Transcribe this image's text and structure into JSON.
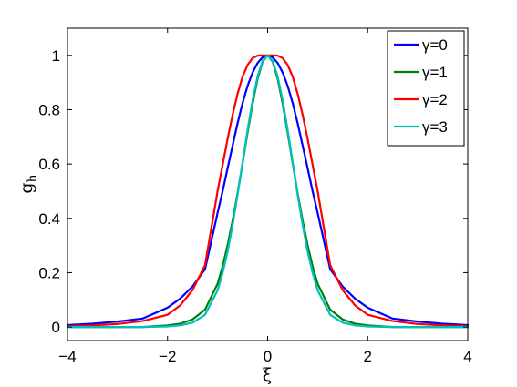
{
  "chart_data": {
    "type": "line",
    "xlabel": "ξ",
    "ylabel_main": "g",
    "ylabel_sub": "h",
    "xlim": [
      -4,
      4
    ],
    "ylim": [
      -0.05,
      1.1
    ],
    "x_ticks": [
      -4,
      -2,
      0,
      2,
      4
    ],
    "x_tick_labels": [
      "−4",
      "−2",
      "0",
      "2",
      "4"
    ],
    "y_ticks": [
      0,
      0.2,
      0.4,
      0.6,
      0.8,
      1
    ],
    "y_tick_labels": [
      "0",
      "0.2",
      "0.4",
      "0.6",
      "0.8",
      "1"
    ],
    "grid": false,
    "legend_position": "top-right",
    "x": [
      -4,
      -3.5,
      -3,
      -2.5,
      -2,
      -1.75,
      -1.5,
      -1.25,
      -1,
      -0.9,
      -0.8,
      -0.7,
      -0.6,
      -0.5,
      -0.4,
      -0.3,
      -0.2,
      -0.1,
      0,
      0.1,
      0.2,
      0.3,
      0.4,
      0.5,
      0.6,
      0.7,
      0.8,
      0.9,
      1,
      1.25,
      1.5,
      1.75,
      2,
      2.5,
      3,
      3.5,
      4
    ],
    "series": [
      {
        "name": "γ=0",
        "color": "#0000ff",
        "values": [
          0.007,
          0.012,
          0.02,
          0.031,
          0.071,
          0.104,
          0.149,
          0.213,
          0.42,
          0.499,
          0.584,
          0.668,
          0.75,
          0.825,
          0.888,
          0.937,
          0.972,
          0.993,
          1,
          0.993,
          0.972,
          0.937,
          0.888,
          0.825,
          0.75,
          0.668,
          0.584,
          0.499,
          0.42,
          0.213,
          0.149,
          0.104,
          0.071,
          0.031,
          0.02,
          0.012,
          0.007
        ]
      },
      {
        "name": "γ=1",
        "color": "#008000",
        "values": [
          0,
          0,
          0,
          0,
          0.006,
          0.012,
          0.028,
          0.064,
          0.159,
          0.223,
          0.301,
          0.392,
          0.493,
          0.603,
          0.716,
          0.823,
          0.914,
          0.977,
          1,
          0.977,
          0.914,
          0.823,
          0.716,
          0.603,
          0.493,
          0.392,
          0.301,
          0.223,
          0.159,
          0.064,
          0.028,
          0.012,
          0.006,
          0,
          0,
          0,
          0
        ]
      },
      {
        "name": "γ=2",
        "color": "#ff0000",
        "values": [
          0.003,
          0.006,
          0.011,
          0.022,
          0.045,
          0.079,
          0.136,
          0.228,
          0.5,
          0.596,
          0.692,
          0.781,
          0.859,
          0.922,
          0.965,
          0.99,
          0.999,
          1,
          1,
          1,
          0.999,
          0.99,
          0.965,
          0.922,
          0.859,
          0.781,
          0.692,
          0.596,
          0.5,
          0.228,
          0.136,
          0.079,
          0.045,
          0.022,
          0.011,
          0.006,
          0.003
        ]
      },
      {
        "name": "γ=3",
        "color": "#00bfbf",
        "values": [
          0,
          0,
          0,
          0,
          0.002,
          0.006,
          0.016,
          0.045,
          0.135,
          0.198,
          0.278,
          0.375,
          0.487,
          0.607,
          0.726,
          0.835,
          0.923,
          0.98,
          1,
          0.98,
          0.923,
          0.835,
          0.726,
          0.607,
          0.487,
          0.375,
          0.278,
          0.198,
          0.135,
          0.045,
          0.016,
          0.006,
          0.002,
          0,
          0,
          0,
          0
        ]
      }
    ]
  }
}
